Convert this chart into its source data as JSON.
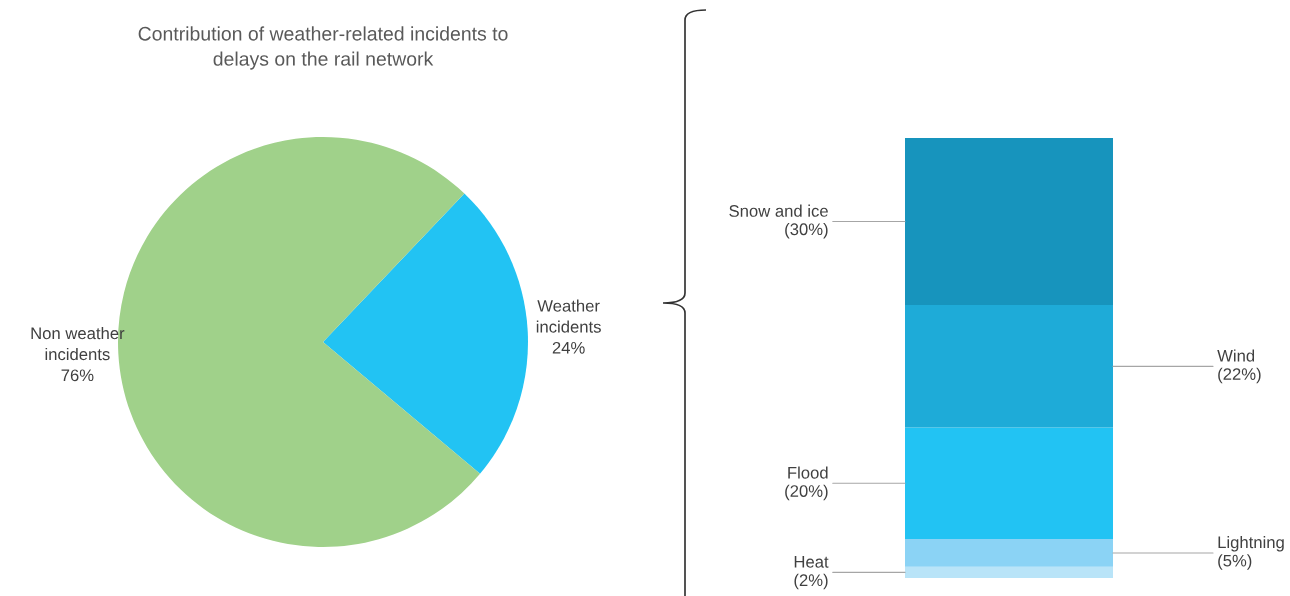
{
  "chart_data": [
    {
      "type": "pie",
      "title": "Contribution of weather-related incidents to\ndelays on the rail network",
      "categories": [
        "Weather\nincidents",
        "Non weather\nincidents"
      ],
      "values": [
        24,
        76
      ],
      "colors": [
        "#22c3f3",
        "#a0d18a"
      ],
      "value_labels": [
        "24%",
        "76%"
      ],
      "legend": false
    },
    {
      "type": "bar",
      "stacked": true,
      "categories": [
        null
      ],
      "legend": false,
      "series": [
        {
          "name": "Heat",
          "color": "#b9e4f8",
          "values": [
            2
          ],
          "value_labels": [
            "(2%)"
          ]
        },
        {
          "name": "Lightning",
          "color": "#8bd3f5",
          "values": [
            5
          ],
          "value_labels": [
            "(5%)"
          ]
        },
        {
          "name": "Flood",
          "color": "#22c3f3",
          "values": [
            20
          ],
          "value_labels": [
            "(20%)"
          ]
        },
        {
          "name": "Wind",
          "color": "#1eabd8",
          "values": [
            22
          ],
          "value_labels": [
            "(22%)"
          ]
        },
        {
          "name": "Snow and ice",
          "color": "#1794bd",
          "values": [
            30
          ],
          "value_labels": [
            "(30%)"
          ]
        }
      ]
    }
  ]
}
